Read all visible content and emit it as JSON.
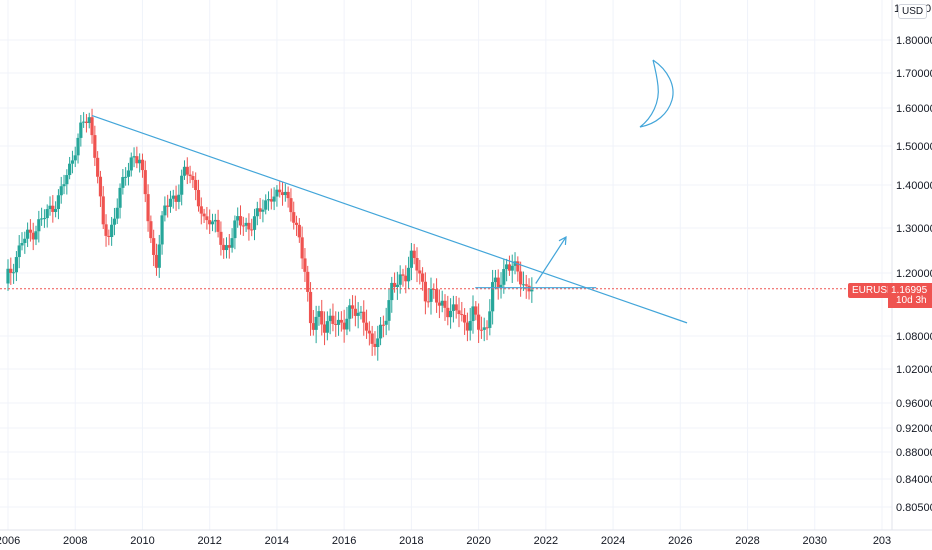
{
  "chart_data": {
    "type": "candlestick",
    "symbol": "EURUSD",
    "currency": "USD",
    "last_price": "1.16995",
    "countdown": "10d 3h",
    "top_tick_partial": "1.",
    "top_tick_suffix": "0",
    "y_ticks": [
      "1.80000",
      "1.70000",
      "1.60000",
      "1.50000",
      "1.40000",
      "1.30000",
      "1.20000",
      "1.08000",
      "1.02000",
      "0.96000",
      "0.92000",
      "0.88000",
      "0.84000",
      "0.80500"
    ],
    "x_ticks": [
      "2006",
      "2008",
      "2010",
      "2012",
      "2014",
      "2016",
      "2018",
      "2020",
      "2022",
      "2024",
      "2026",
      "2028",
      "2030",
      "203"
    ],
    "ylim": [
      0.79,
      1.9
    ],
    "xlim": [
      2006.0,
      2032.0
    ],
    "colors": {
      "up": "#26a69a",
      "down": "#ef5350",
      "trendline": "#42a5d9",
      "price_line": "#ef5350",
      "drawing": "#42a5d9"
    },
    "price_path": [
      [
        2006.0,
        1.18
      ],
      [
        2006.2,
        1.21
      ],
      [
        2006.5,
        1.27
      ],
      [
        2006.8,
        1.29
      ],
      [
        2007.0,
        1.31
      ],
      [
        2007.3,
        1.34
      ],
      [
        2007.6,
        1.37
      ],
      [
        2007.9,
        1.44
      ],
      [
        2008.1,
        1.5
      ],
      [
        2008.3,
        1.56
      ],
      [
        2008.5,
        1.57
      ],
      [
        2008.7,
        1.47
      ],
      [
        2008.9,
        1.3
      ],
      [
        2009.1,
        1.28
      ],
      [
        2009.3,
        1.35
      ],
      [
        2009.6,
        1.43
      ],
      [
        2009.8,
        1.48
      ],
      [
        2010.0,
        1.46
      ],
      [
        2010.2,
        1.36
      ],
      [
        2010.4,
        1.24
      ],
      [
        2010.5,
        1.22
      ],
      [
        2010.7,
        1.33
      ],
      [
        2010.9,
        1.38
      ],
      [
        2011.1,
        1.36
      ],
      [
        2011.3,
        1.43
      ],
      [
        2011.5,
        1.44
      ],
      [
        2011.7,
        1.37
      ],
      [
        2011.9,
        1.31
      ],
      [
        2012.1,
        1.33
      ],
      [
        2012.3,
        1.3
      ],
      [
        2012.5,
        1.24
      ],
      [
        2012.7,
        1.28
      ],
      [
        2012.9,
        1.32
      ],
      [
        2013.1,
        1.3
      ],
      [
        2013.3,
        1.31
      ],
      [
        2013.5,
        1.33
      ],
      [
        2013.7,
        1.35
      ],
      [
        2013.9,
        1.38
      ],
      [
        2014.1,
        1.37
      ],
      [
        2014.3,
        1.39
      ],
      [
        2014.5,
        1.35
      ],
      [
        2014.7,
        1.28
      ],
      [
        2014.9,
        1.22
      ],
      [
        2015.1,
        1.1
      ],
      [
        2015.3,
        1.11
      ],
      [
        2015.5,
        1.1
      ],
      [
        2015.7,
        1.12
      ],
      [
        2015.9,
        1.09
      ],
      [
        2016.1,
        1.11
      ],
      [
        2016.3,
        1.14
      ],
      [
        2016.5,
        1.11
      ],
      [
        2016.7,
        1.12
      ],
      [
        2016.9,
        1.06
      ],
      [
        2017.1,
        1.07
      ],
      [
        2017.3,
        1.12
      ],
      [
        2017.5,
        1.17
      ],
      [
        2017.7,
        1.18
      ],
      [
        2017.9,
        1.2
      ],
      [
        2018.1,
        1.24
      ],
      [
        2018.3,
        1.2
      ],
      [
        2018.5,
        1.16
      ],
      [
        2018.7,
        1.16
      ],
      [
        2018.9,
        1.14
      ],
      [
        2019.1,
        1.14
      ],
      [
        2019.3,
        1.12
      ],
      [
        2019.5,
        1.13
      ],
      [
        2019.7,
        1.1
      ],
      [
        2019.9,
        1.12
      ],
      [
        2020.1,
        1.1
      ],
      [
        2020.3,
        1.09
      ],
      [
        2020.5,
        1.17
      ],
      [
        2020.7,
        1.18
      ],
      [
        2020.9,
        1.22
      ],
      [
        2021.1,
        1.21
      ],
      [
        2021.3,
        1.2
      ],
      [
        2021.5,
        1.17
      ],
      [
        2021.6,
        1.17
      ]
    ],
    "trendline": [
      [
        2008.5,
        1.58
      ],
      [
        2026.2,
        1.105
      ]
    ],
    "support_line": [
      [
        2019.9,
        1.172
      ],
      [
        2023.5,
        1.172
      ]
    ],
    "arrow": [
      [
        2021.7,
        1.18
      ],
      [
        2022.6,
        1.28
      ]
    ]
  }
}
